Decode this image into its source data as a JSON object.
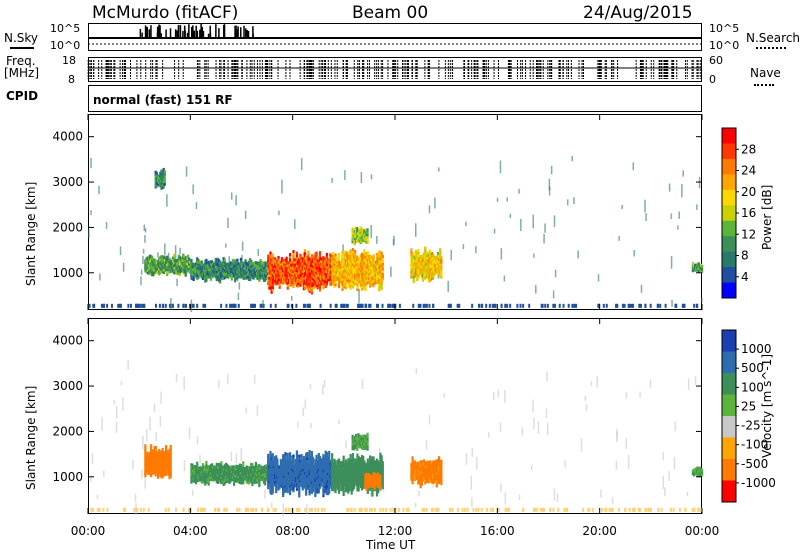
{
  "header": {
    "station": "McMurdo (fitACF)",
    "beam": "Beam 00",
    "date": "24/Aug/2015"
  },
  "strip": {
    "nsky_label": "N.Sky",
    "nsearch_label": "N.Search",
    "freq_label_1": "Freq.",
    "freq_label_2": "[MHz]",
    "nave_label": "Nave",
    "cpid_label": "CPID",
    "cpid_text": "normal (fast) 151 RF",
    "noise_ticks": [
      "10^5",
      "10^0"
    ],
    "freq_ticks": [
      "18",
      "8"
    ],
    "nave_ticks": [
      "60",
      "0"
    ]
  },
  "power_bar": {
    "label": "Power [dB]",
    "ticks": [
      "28",
      "24",
      "20",
      "16",
      "12",
      "8",
      "4"
    ],
    "colors": [
      "#ff0000",
      "#ff3800",
      "#ff7a00",
      "#ffa500",
      "#ffd700",
      "#c8d200",
      "#5bb53a",
      "#3d8f5a",
      "#2a7a6a",
      "#1f4fa0",
      "#0000ff"
    ]
  },
  "velocity_bar": {
    "label": "Velocity [m s^-1]",
    "ticks": [
      "1000",
      "500",
      "100",
      "25",
      "-25",
      "-100",
      "-500",
      "-1000"
    ],
    "colors": [
      "#1a3fb0",
      "#2f6db0",
      "#3d8f5a",
      "#5bb53a",
      "#c8c8c8",
      "#ffa500",
      "#ff7a00",
      "#ff0000"
    ]
  },
  "chart_data": {
    "type": "heatmap",
    "xlabel": "Time UT",
    "ylabel": "Slant Range [km]",
    "x_ticks": [
      "00:00",
      "04:00",
      "08:00",
      "12:00",
      "16:00",
      "20:00",
      "00:00"
    ],
    "y_ticks": [
      "1000",
      "2000",
      "3000",
      "4000"
    ],
    "xlim_hours": [
      0,
      24
    ],
    "ylim_km": [
      180,
      4500
    ],
    "panels": [
      {
        "name": "Power",
        "blobs": [
          {
            "t_start": 2.2,
            "t_end": 4.0,
            "r_center": 1150,
            "r_half": 180,
            "value": 10
          },
          {
            "t_start": 4.0,
            "t_end": 7.0,
            "r_center": 1050,
            "r_half": 200,
            "value": 8
          },
          {
            "t_start": 7.0,
            "t_end": 9.5,
            "r_center": 1000,
            "r_half": 350,
            "value": 26
          },
          {
            "t_start": 9.5,
            "t_end": 11.5,
            "r_center": 1050,
            "r_half": 350,
            "value": 20
          },
          {
            "t_start": 12.6,
            "t_end": 13.8,
            "r_center": 1150,
            "r_half": 280,
            "value": 18
          },
          {
            "t_start": 10.3,
            "t_end": 10.9,
            "r_center": 1800,
            "r_half": 150,
            "value": 14
          },
          {
            "t_start": 2.6,
            "t_end": 3.0,
            "r_center": 3050,
            "r_half": 180,
            "value": 8
          },
          {
            "t_start": 23.6,
            "t_end": 24.0,
            "r_center": 1100,
            "r_half": 80,
            "value": 10
          }
        ]
      },
      {
        "name": "Velocity",
        "blobs": [
          {
            "t_start": 2.2,
            "t_end": 3.2,
            "r_center": 1300,
            "r_half": 300,
            "value": -200
          },
          {
            "t_start": 4.0,
            "t_end": 7.0,
            "r_center": 1050,
            "r_half": 200,
            "value": 80
          },
          {
            "t_start": 7.0,
            "t_end": 9.5,
            "r_center": 1050,
            "r_half": 400,
            "value": 600
          },
          {
            "t_start": 9.5,
            "t_end": 11.5,
            "r_center": 1050,
            "r_half": 350,
            "value": 200
          },
          {
            "t_start": 10.8,
            "t_end": 11.4,
            "r_center": 900,
            "r_half": 150,
            "value": -300
          },
          {
            "t_start": 12.6,
            "t_end": 13.8,
            "r_center": 1100,
            "r_half": 250,
            "value": -150
          },
          {
            "t_start": 10.3,
            "t_end": 10.9,
            "r_center": 1750,
            "r_half": 150,
            "value": 60
          },
          {
            "t_start": 23.6,
            "t_end": 24.0,
            "r_center": 1100,
            "r_half": 80,
            "value": 60
          }
        ]
      }
    ]
  }
}
